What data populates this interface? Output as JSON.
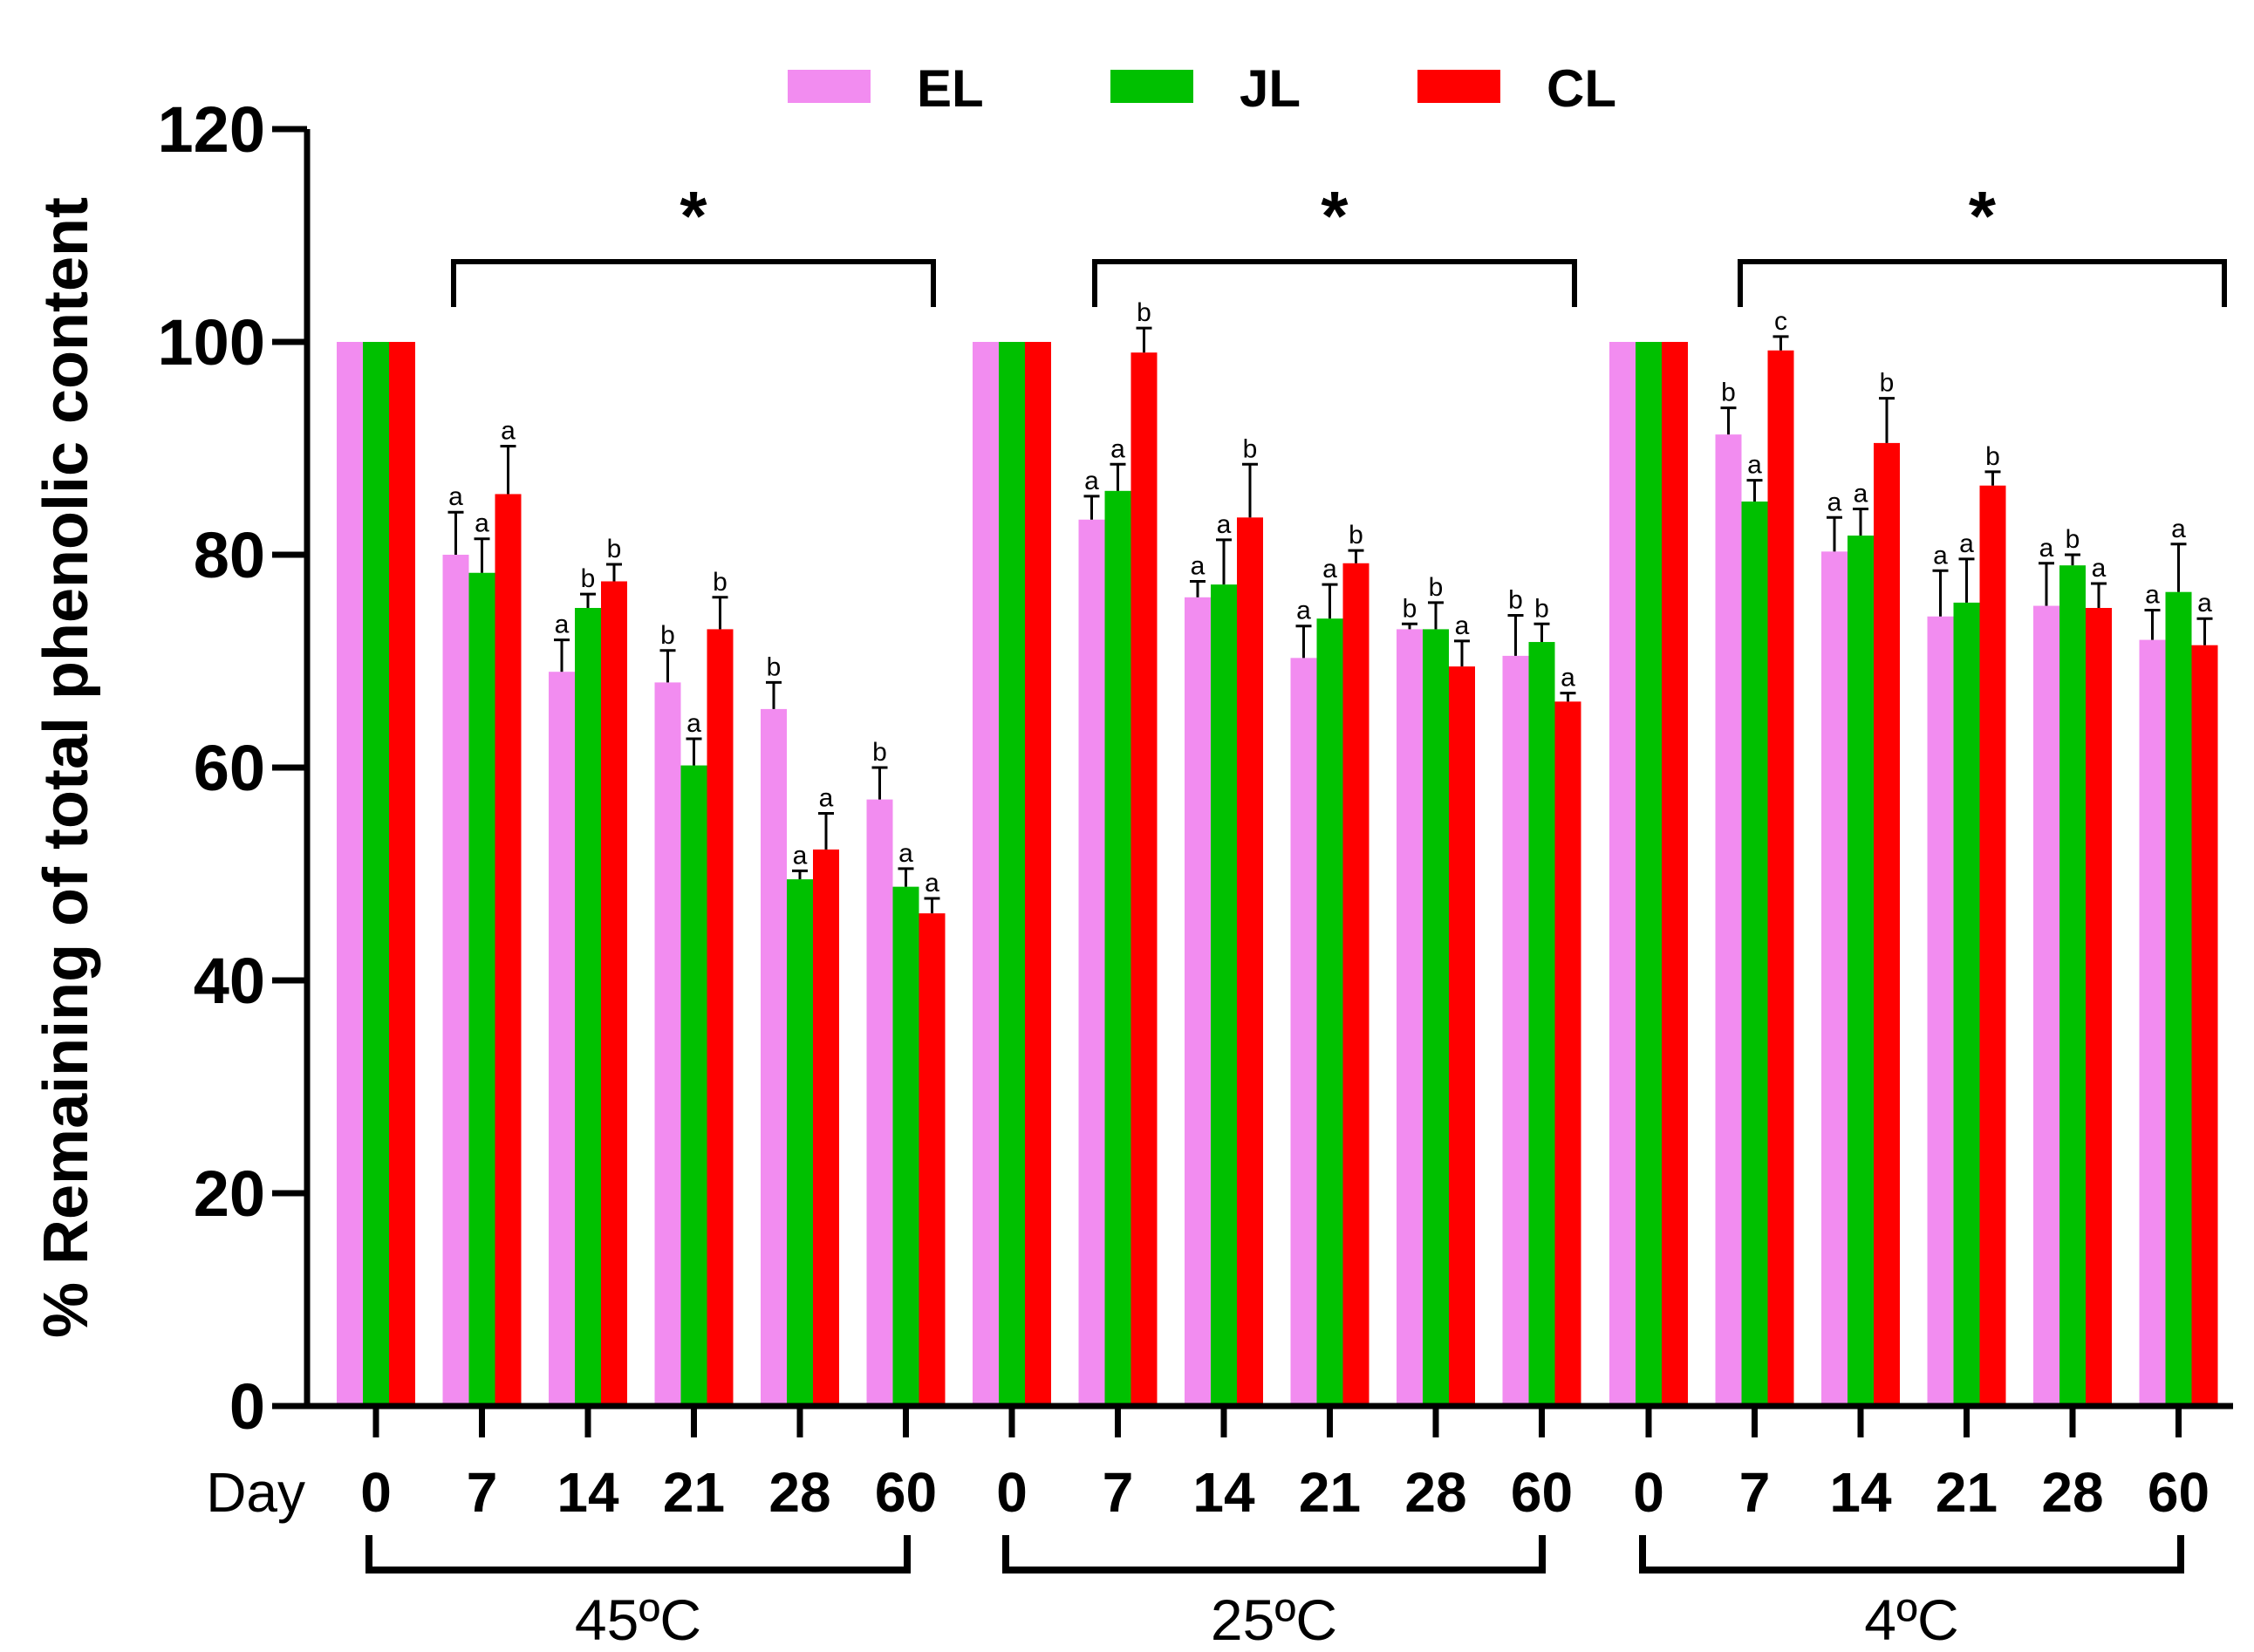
{
  "chart_data": {
    "type": "bar",
    "ylabel": "% Remaining of total phenolic content",
    "xlabel_prefix": "Day",
    "ylim": [
      0,
      120
    ],
    "yticks": [
      0,
      20,
      40,
      60,
      80,
      100,
      120
    ],
    "days": [
      "0",
      "7",
      "14",
      "21",
      "28",
      "60"
    ],
    "legend": [
      {
        "name": "EL",
        "color": "#f28cf0"
      },
      {
        "name": "JL",
        "color": "#00c000"
      },
      {
        "name": "CL",
        "color": "#ff0000"
      }
    ],
    "significance_marker": "*",
    "groups": [
      {
        "label": "45ºC",
        "series": [
          {
            "name": "EL",
            "values": [
              100,
              80,
              69,
              68,
              65.5,
              57
            ],
            "errors": [
              0,
              4,
              3,
              3,
              2.5,
              3
            ],
            "letters": [
              "",
              "a",
              "a",
              "b",
              "b",
              "b"
            ]
          },
          {
            "name": "JL",
            "values": [
              100,
              78.3,
              75,
              60.2,
              49.5,
              48.8
            ],
            "errors": [
              0,
              3.2,
              1.3,
              2.5,
              0.8,
              1.7
            ],
            "letters": [
              "",
              "a",
              "b",
              "a",
              "a",
              "a"
            ]
          },
          {
            "name": "CL",
            "values": [
              100,
              85.7,
              77.5,
              73,
              52.3,
              46.3
            ],
            "errors": [
              0,
              4.5,
              1.6,
              3,
              3.4,
              1.4
            ],
            "letters": [
              "",
              "a",
              "b",
              "b",
              "a",
              "a"
            ]
          }
        ]
      },
      {
        "label": "25ºC",
        "series": [
          {
            "name": "EL",
            "values": [
              100,
              83.3,
              76,
              70.3,
              73,
              70.5
            ],
            "errors": [
              0,
              2.2,
              1.5,
              3,
              0.5,
              3.8
            ],
            "letters": [
              "",
              "a",
              "a",
              "a",
              "b",
              "b"
            ]
          },
          {
            "name": "JL",
            "values": [
              100,
              86,
              77.2,
              74,
              73,
              71.8
            ],
            "errors": [
              0,
              2.5,
              4.2,
              3.2,
              2.5,
              1.7
            ],
            "letters": [
              "",
              "a",
              "a",
              "a",
              "b",
              "b"
            ]
          },
          {
            "name": "CL",
            "values": [
              100,
              99,
              83.5,
              79.2,
              69.5,
              66.2
            ],
            "errors": [
              0,
              2.3,
              5,
              1.2,
              2.4,
              0.8
            ],
            "letters": [
              "",
              "b",
              "b",
              "b",
              "a",
              "a"
            ]
          }
        ]
      },
      {
        "label": "4ºC",
        "series": [
          {
            "name": "EL",
            "values": [
              100,
              91.3,
              80.3,
              74.2,
              75.2,
              72
            ],
            "errors": [
              0,
              2.5,
              3.2,
              4.3,
              4,
              2.8
            ],
            "letters": [
              "",
              "b",
              "a",
              "a",
              "a",
              "a"
            ]
          },
          {
            "name": "JL",
            "values": [
              100,
              85,
              81.8,
              75.5,
              79,
              76.5
            ],
            "errors": [
              0,
              2,
              2.5,
              4.1,
              1,
              4.5
            ],
            "letters": [
              "",
              "a",
              "a",
              "a",
              "b",
              "a"
            ]
          },
          {
            "name": "CL",
            "values": [
              100,
              99.2,
              90.5,
              86.5,
              75,
              71.5
            ],
            "errors": [
              0,
              1.3,
              4.2,
              1.3,
              2.3,
              2.5
            ],
            "letters": [
              "",
              "c",
              "b",
              "b",
              "a",
              "a"
            ]
          }
        ]
      }
    ]
  }
}
